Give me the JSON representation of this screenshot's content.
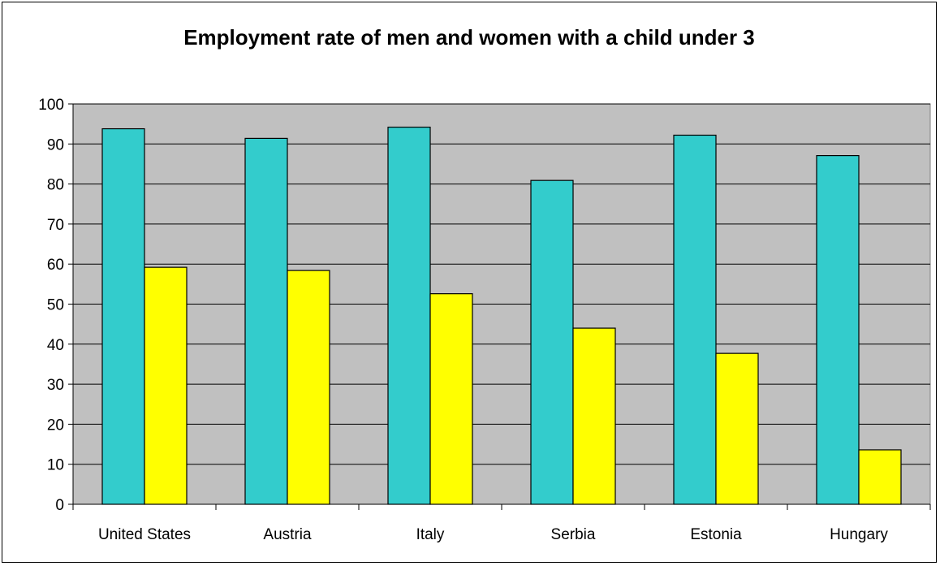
{
  "chart_data": {
    "type": "bar",
    "title": "Employment rate of men and women with a child under 3",
    "xlabel": "",
    "ylabel": "",
    "ylim": [
      0,
      100
    ],
    "yticks": [
      0,
      10,
      20,
      30,
      40,
      50,
      60,
      70,
      80,
      90,
      100
    ],
    "categories": [
      "United States",
      "Austria",
      "Italy",
      "Serbia",
      "Estonia",
      "Hungary"
    ],
    "series": [
      {
        "color": "#33CCCC",
        "values": [
          93.8,
          91.4,
          94.2,
          80.9,
          92.2,
          87.1
        ]
      },
      {
        "color": "#FFFF00",
        "values": [
          59.2,
          58.4,
          52.6,
          44.0,
          37.7,
          13.6
        ]
      }
    ],
    "plot_background": "#C0C0C0",
    "grid": true,
    "legend": "none"
  }
}
